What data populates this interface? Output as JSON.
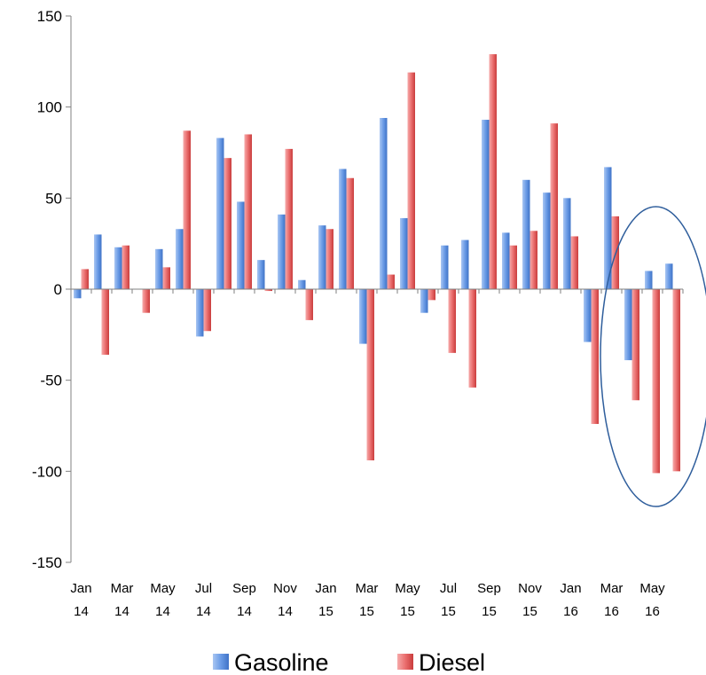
{
  "chart_data": {
    "type": "bar",
    "title": "",
    "xlabel": "",
    "ylabel": "",
    "ylim": [
      -150,
      150
    ],
    "yticks": [
      150,
      100,
      50,
      0,
      -50,
      -100,
      -150
    ],
    "grid": false,
    "legend_position": "bottom",
    "categories": [
      "Jan 14",
      "Feb 14",
      "Mar 14",
      "Apr 14",
      "May 14",
      "Jun 14",
      "Jul 14",
      "Aug 14",
      "Sep 14",
      "Oct 14",
      "Nov 14",
      "Dec 14",
      "Jan 15",
      "Feb 15",
      "Mar 15",
      "Apr 15",
      "May 15",
      "Jun 15",
      "Jul 15",
      "Aug 15",
      "Sep 15",
      "Oct 15",
      "Nov 15",
      "Dec 15",
      "Jan 16",
      "Feb 16",
      "Mar 16",
      "Apr 16",
      "May 16",
      "Jun 16"
    ],
    "category_labels": [
      {
        "index": 0,
        "line1": "Jan",
        "line2": "14"
      },
      {
        "index": 2,
        "line1": "Mar",
        "line2": "14"
      },
      {
        "index": 4,
        "line1": "May",
        "line2": "14"
      },
      {
        "index": 6,
        "line1": "Jul",
        "line2": "14"
      },
      {
        "index": 8,
        "line1": "Sep",
        "line2": "14"
      },
      {
        "index": 10,
        "line1": "Nov",
        "line2": "14"
      },
      {
        "index": 12,
        "line1": "Jan",
        "line2": "15"
      },
      {
        "index": 14,
        "line1": "Mar",
        "line2": "15"
      },
      {
        "index": 16,
        "line1": "May",
        "line2": "15"
      },
      {
        "index": 18,
        "line1": "Jul",
        "line2": "15"
      },
      {
        "index": 20,
        "line1": "Sep",
        "line2": "15"
      },
      {
        "index": 22,
        "line1": "Nov",
        "line2": "15"
      },
      {
        "index": 24,
        "line1": "Jan",
        "line2": "16"
      },
      {
        "index": 26,
        "line1": "Mar",
        "line2": "16"
      },
      {
        "index": 28,
        "line1": "May",
        "line2": "16"
      }
    ],
    "series": [
      {
        "name": "Gasoline",
        "color": "#5b8fdb",
        "values": [
          -5,
          30,
          23,
          0,
          22,
          33,
          -26,
          83,
          48,
          16,
          41,
          5,
          35,
          66,
          -30,
          94,
          39,
          -13,
          24,
          27,
          93,
          31,
          60,
          53,
          50,
          -29,
          67,
          -39,
          10,
          14
        ]
      },
      {
        "name": "Diesel",
        "color": "#e05555",
        "values": [
          11,
          -36,
          24,
          -13,
          12,
          87,
          -23,
          72,
          85,
          -1,
          77,
          -17,
          33,
          61,
          -94,
          8,
          119,
          -6,
          -35,
          -54,
          129,
          24,
          32,
          91,
          29,
          -74,
          40,
          -61,
          -101,
          -100
        ]
      }
    ],
    "annotation": {
      "type": "ellipse",
      "around_categories": [
        27,
        29
      ],
      "color": "#2f5e9c"
    }
  }
}
